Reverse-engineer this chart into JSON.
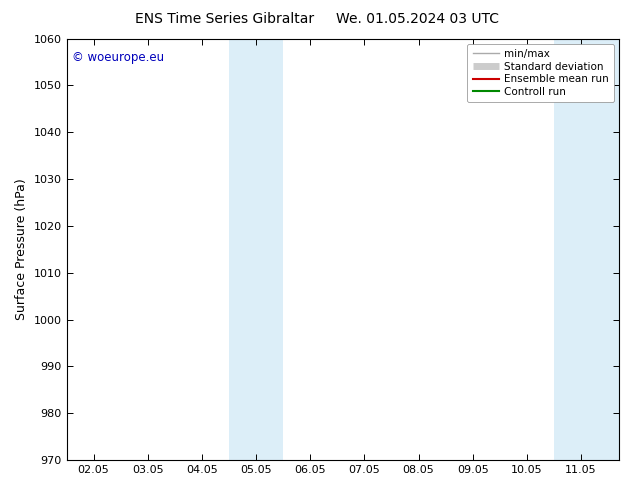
{
  "title": "ENS Time Series Gibraltar     We. 01.05.2024 03 UTC",
  "ylabel": "Surface Pressure (hPa)",
  "ylim": [
    970,
    1060
  ],
  "yticks": [
    970,
    980,
    990,
    1000,
    1010,
    1020,
    1030,
    1040,
    1050,
    1060
  ],
  "xlabels": [
    "02.05",
    "03.05",
    "04.05",
    "05.05",
    "06.05",
    "07.05",
    "08.05",
    "09.05",
    "10.05",
    "11.05"
  ],
  "x_positions": [
    0,
    1,
    2,
    3,
    4,
    5,
    6,
    7,
    8,
    9
  ],
  "x_min": -0.5,
  "x_max": 9.7,
  "shaded_bands": [
    {
      "x_start": 2.5,
      "x_end": 3.5,
      "color": "#dceef8"
    },
    {
      "x_start": 8.5,
      "x_end": 9.7,
      "color": "#dceef8"
    }
  ],
  "copyright_text": "© woeurope.eu",
  "copyright_color": "#0000bb",
  "legend_labels": [
    "min/max",
    "Standard deviation",
    "Ensemble mean run",
    "Controll run"
  ],
  "legend_line_colors": [
    "#aaaaaa",
    "#cccccc",
    "#cc0000",
    "#008800"
  ],
  "background_color": "#ffffff",
  "plot_bg_color": "#ffffff",
  "title_fontsize": 10,
  "tick_fontsize": 8,
  "ylabel_fontsize": 9
}
